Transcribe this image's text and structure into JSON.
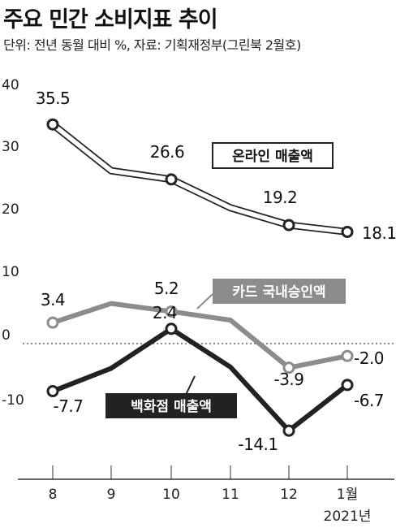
{
  "header": {
    "title": "주요 민간 소비지표 추이",
    "subtitle": "단위: 전년 동월 대비 %, 자료: 기획재정부(그린북 2월호)"
  },
  "chart_data": {
    "type": "line",
    "categories": [
      "8",
      "9",
      "10",
      "11",
      "12",
      "1월"
    ],
    "year_label": "2021년",
    "y_ticks": [
      "40",
      "30",
      "20",
      "10",
      "0",
      "-10"
    ],
    "ylim": [
      -23,
      40
    ],
    "colors": {
      "online": "#222222",
      "card": "#8c8c8c",
      "dept": "#222222"
    },
    "series": [
      {
        "name": "온라인 매출액",
        "key": "online",
        "values": [
          35.5,
          28.0,
          26.6,
          22.0,
          19.2,
          18.1
        ],
        "labels": [
          "35.5",
          null,
          "26.6",
          null,
          "19.2",
          "18.1"
        ],
        "markers": [
          true,
          false,
          true,
          false,
          true,
          true
        ]
      },
      {
        "name": "카드 국내승인액",
        "key": "card",
        "values": [
          3.4,
          6.5,
          5.2,
          3.8,
          -3.9,
          -2.0
        ],
        "labels": [
          "3.4",
          null,
          "5.2",
          null,
          "-3.9",
          "-2.0"
        ],
        "markers": [
          true,
          false,
          true,
          false,
          true,
          true
        ]
      },
      {
        "name": "백화점 매출액",
        "key": "dept",
        "values": [
          -7.7,
          -4.0,
          2.4,
          -3.8,
          -14.1,
          -6.7
        ],
        "labels": [
          "-7.7",
          null,
          "2.4",
          null,
          "-14.1",
          "-6.7"
        ],
        "markers": [
          true,
          false,
          true,
          false,
          true,
          true
        ]
      }
    ]
  }
}
